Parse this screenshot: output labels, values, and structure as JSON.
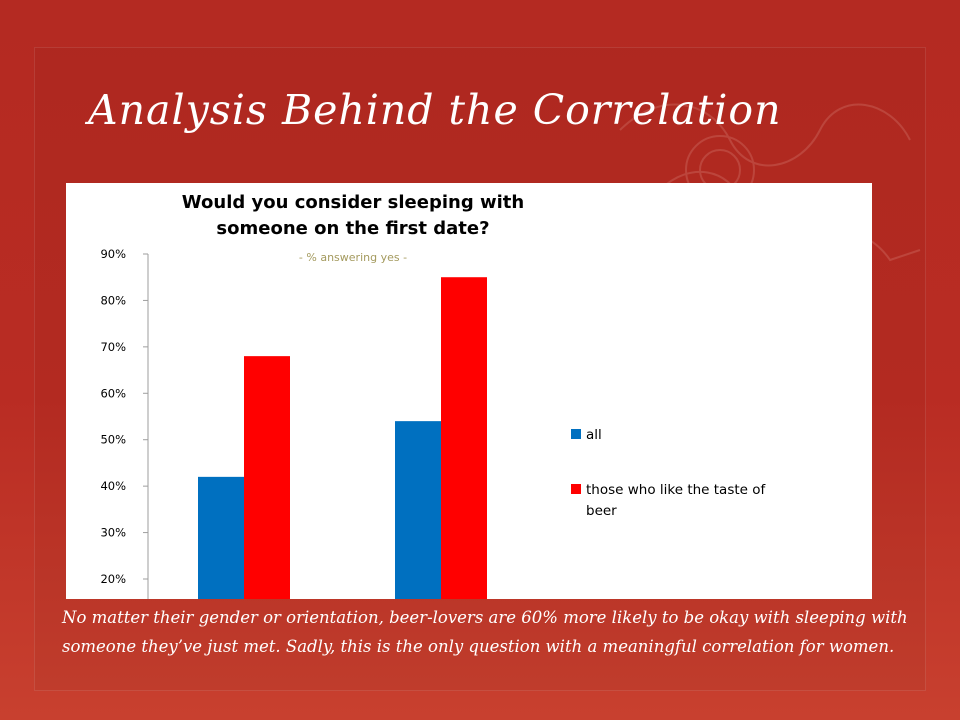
{
  "slide": {
    "title": "Analysis Behind the Correlation",
    "caption": "No matter their gender or orientation, beer-lovers are 60% more likely to be okay with sleeping with someone they’ve just met.  Sadly, this is the only question with a meaningful correlation for women."
  },
  "colors": {
    "background": "#b42a22",
    "series_all": "#0070c0",
    "series_beer": "#ff0000",
    "subtitle": "#a49a5e"
  },
  "chart_data": {
    "type": "bar",
    "title": "Would you consider sleeping with someone on the first date?",
    "title_lines": [
      "Would you consider sleeping with",
      "someone on the first date?"
    ],
    "subtitle": "- % answering yes -",
    "categories": [
      "",
      ""
    ],
    "series": [
      {
        "name": "all",
        "values": [
          42,
          54
        ]
      },
      {
        "name": "those who like the taste of beer",
        "values": [
          68,
          85
        ]
      }
    ],
    "legend_lines": [
      [
        "all"
      ],
      [
        "those who like the taste of",
        "beer"
      ]
    ],
    "yticks": [
      "90%",
      "80%",
      "70%",
      "60%",
      "50%",
      "40%",
      "30%",
      "20%"
    ],
    "ylim": [
      20,
      90
    ],
    "grid": false,
    "legend_position": "right"
  }
}
